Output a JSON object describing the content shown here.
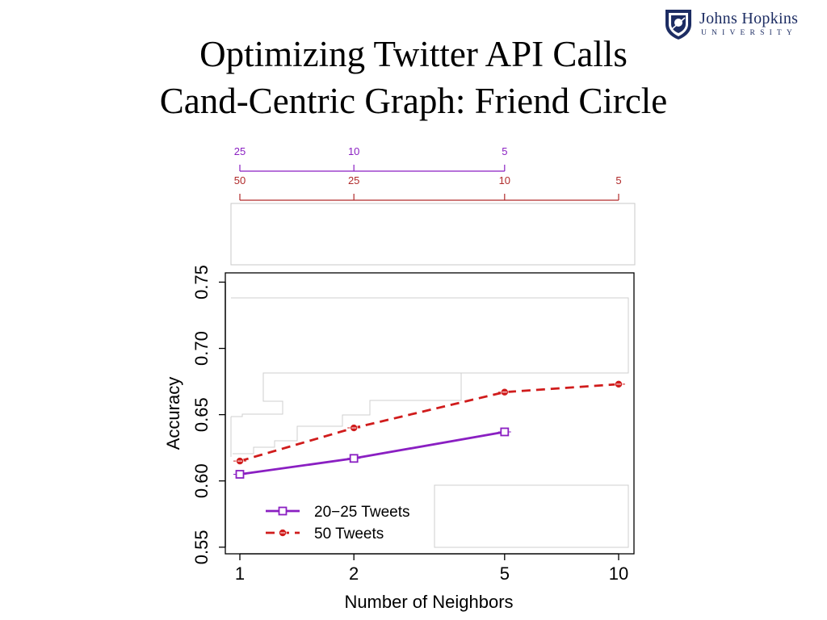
{
  "slide": {
    "title_line1": "Optimizing Twitter API Calls",
    "title_line2": "Cand-Centric Graph: Friend Circle"
  },
  "logo": {
    "name": "Johns Hopkins",
    "subtitle": "UNIVERSITY",
    "color": "#1d2d63"
  },
  "chart_data": {
    "type": "line",
    "title": "",
    "xlabel": "Number of Neighbors",
    "ylabel": "Accuracy",
    "x_scale": "log",
    "xlim": [
      0.9,
      11
    ],
    "ylim": [
      0.545,
      0.757
    ],
    "x_ticks": [
      1,
      2,
      5,
      10
    ],
    "x_tick_labels": [
      "1",
      "2",
      "5",
      "10"
    ],
    "y_ticks": [
      0.55,
      0.6,
      0.65,
      0.7,
      0.75
    ],
    "y_tick_labels": [
      "0.55",
      "0.60",
      "0.65",
      "0.70",
      "0.75"
    ],
    "grid": false,
    "legend_position": "bottom-left",
    "series": [
      {
        "name": "20−25 Tweets",
        "color": "#8a1fc2",
        "line_style": "solid",
        "marker": "square",
        "x": [
          1,
          2,
          5
        ],
        "y": [
          0.605,
          0.617,
          0.637
        ]
      },
      {
        "name": "50 Tweets",
        "color": "#d01c1c",
        "line_style": "dashed",
        "marker": "circle",
        "x": [
          1,
          2,
          5,
          10
        ],
        "y": [
          0.615,
          0.64,
          0.667,
          0.673
        ]
      }
    ],
    "top_axes": [
      {
        "color": "#8a1fc2",
        "ticks": [
          1,
          2,
          5
        ],
        "labels": [
          "25",
          "10",
          "5"
        ]
      },
      {
        "color": "#b02a2a",
        "ticks": [
          1,
          2,
          5,
          10
        ],
        "labels": [
          "50",
          "25",
          "10",
          "5"
        ]
      }
    ]
  }
}
